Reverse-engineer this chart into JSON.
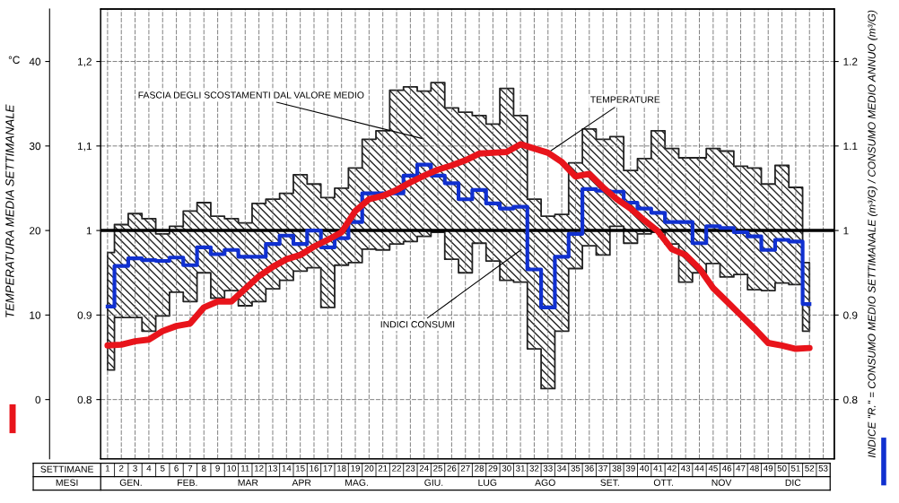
{
  "chart_data": {
    "type": "step",
    "y3label": "TEMPERATURA MEDIA SETTIMANALE",
    "y2label": "INDICE \"R.\" = CONSUMO MEDIO SETTIMANALE (m³/G) / CONSUMO MEDIO ANNUO (m³/G)",
    "xlabel": "SETTIMANE",
    "categories": [
      "1",
      "2",
      "3",
      "4",
      "5",
      "6",
      "7",
      "8",
      "9",
      "10",
      "11",
      "12",
      "13",
      "14",
      "15",
      "16",
      "17",
      "18",
      "19",
      "20",
      "21",
      "22",
      "23",
      "24",
      "25",
      "26",
      "27",
      "28",
      "29",
      "30",
      "31",
      "32",
      "33",
      "34",
      "35",
      "36",
      "37",
      "38",
      "39",
      "40",
      "41",
      "42",
      "43",
      "44",
      "45",
      "46",
      "47",
      "48",
      "49",
      "50",
      "51",
      "52",
      "53"
    ],
    "series": [
      {
        "color": "#1030d0",
        "values": [
          0.91,
          0.958,
          0.967,
          0.965,
          0.964,
          0.968,
          0.959,
          0.98,
          0.972,
          0.977,
          0.969,
          0.969,
          0.984,
          0.994,
          0.984,
          1.0,
          0.98,
          0.991,
          1.01,
          1.044,
          1.044,
          1.044,
          1.065,
          1.078,
          1.065,
          1.056,
          1.037,
          1.048,
          1.032,
          1.026,
          1.028,
          0.954,
          0.909,
          0.969,
          0.996,
          1.049,
          1.047,
          1.046,
          1.033,
          1.026,
          1.021,
          1.01,
          1.01,
          0.985,
          1.005,
          1.003,
          0.998,
          0.993,
          0.977,
          0.989,
          0.987,
          0.913,
          null
        ],
        "upper": [
          0.974,
          1.007,
          1.02,
          1.014,
          0.996,
          1.005,
          1.023,
          1.033,
          1.017,
          1.014,
          1.009,
          1.032,
          1.037,
          1.044,
          1.066,
          1.055,
          1.039,
          1.05,
          1.074,
          1.108,
          1.118,
          1.166,
          1.17,
          1.165,
          1.175,
          1.145,
          1.14,
          1.136,
          1.126,
          1.168,
          1.136,
          1.037,
          1.017,
          1.019,
          1.08,
          1.12,
          1.108,
          1.111,
          1.071,
          1.085,
          1.118,
          1.097,
          1.086,
          1.086,
          1.097,
          1.094,
          1.076,
          1.074,
          1.055,
          1.077,
          1.051,
          0.962,
          null
        ],
        "lower": [
          0.835,
          0.897,
          0.897,
          0.881,
          0.899,
          0.927,
          0.916,
          0.95,
          0.92,
          0.929,
          0.911,
          0.916,
          0.931,
          0.941,
          0.952,
          0.956,
          0.909,
          0.959,
          0.962,
          0.978,
          0.977,
          0.984,
          0.987,
          0.993,
          0.998,
          0.966,
          0.95,
          0.985,
          0.964,
          0.941,
          0.939,
          0.86,
          0.813,
          0.881,
          0.955,
          0.982,
          0.971,
          1.005,
          0.985,
          0.996,
          0.998,
          0.984,
          0.939,
          0.95,
          0.961,
          0.945,
          0.948,
          0.93,
          0.929,
          0.938,
          0.936,
          0.881,
          null
        ]
      },
      {
        "type": "line",
        "axis": "y3",
        "color": "#e8141b",
        "values": [
          6.4,
          6.5,
          6.9,
          7.1,
          8.1,
          8.7,
          9.0,
          10.9,
          11.6,
          11.6,
          13.1,
          14.6,
          15.7,
          16.6,
          17.1,
          18.1,
          18.9,
          19.8,
          22.3,
          23.7,
          24.1,
          24.8,
          25.7,
          26.5,
          27.2,
          27.7,
          28.3,
          29.1,
          29.2,
          29.3,
          30.2,
          29.7,
          29.2,
          28.1,
          26.4,
          26.7,
          25.1,
          23.7,
          22.6,
          21.2,
          19.9,
          17.8,
          17.1,
          15.5,
          13.2,
          11.6,
          10.0,
          8.4,
          6.7,
          6.4,
          6.0,
          6.1,
          null
        ]
      }
    ],
    "ylim": [
      0.73,
      1.262
    ],
    "yticks": [
      {
        "value": 0.8,
        "label": "0.8"
      },
      {
        "value": 0.9,
        "label": "0.9"
      },
      1,
      {
        "value": 1.1,
        "label": "1,1"
      },
      {
        "value": 1.2,
        "label": "1,2"
      }
    ],
    "y2lim": [
      0.73,
      1.262
    ],
    "y2ticks": [
      0.8,
      0.9,
      1,
      1.1,
      1.2
    ],
    "y3lim": [
      -7,
      46.2
    ],
    "y3ticks": [
      0,
      10,
      20,
      30,
      40
    ],
    "ref_lines": [
      {
        "axis": "y",
        "value": 1,
        "color": "#000000"
      }
    ],
    "grid": true,
    "annotations": [
      "FASCIA DEGLI SCOSTAMENTI DAL VALORE MEDIO",
      {
        "text": "TEMPERATURE",
        "x": "33",
        "y": 1.092
      },
      "INDICI CONSUMI",
      "MESI",
      "GEN.",
      "FEB.",
      "MAR",
      "APR",
      "MAG.",
      "GIU.",
      "LUG",
      "AGO",
      "SET.",
      "OTT.",
      "NOV",
      "DIC",
      "°C"
    ]
  }
}
